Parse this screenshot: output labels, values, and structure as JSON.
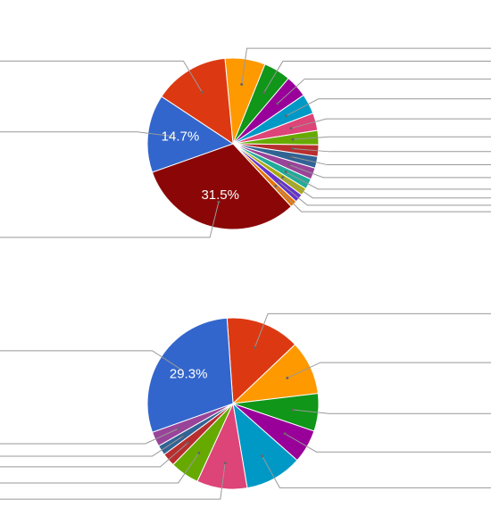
{
  "chart_data": [
    {
      "type": "pie",
      "values": [
        7.6,
        5.1,
        4.2,
        3.8,
        3.3,
        2.7,
        2.2,
        2.2,
        2.2,
        2.0,
        1.4,
        1.6,
        1.3,
        31.5,
        14.7,
        14.2
      ],
      "value_labels": [
        null,
        null,
        null,
        null,
        null,
        null,
        null,
        null,
        null,
        null,
        null,
        null,
        null,
        "31.5%",
        "14.7%",
        null
      ],
      "colors": [
        "#ff9900",
        "#109618",
        "#990099",
        "#0099c6",
        "#dd4477",
        "#66aa00",
        "#b82e2e",
        "#316395",
        "#994499",
        "#22aa99",
        "#aaaa11",
        "#6633cc",
        "#e67300",
        "#8b0707",
        "#3366cc",
        "#dc3912"
      ]
    },
    {
      "type": "pie",
      "values": [
        14.0,
        10.2,
        7.1,
        6.3,
        10.8,
        9.5,
        5.5,
        2.5,
        1.9,
        2.8,
        29.3
      ],
      "value_labels": [
        null,
        null,
        null,
        null,
        null,
        null,
        null,
        null,
        null,
        null,
        "29.3%"
      ],
      "colors": [
        "#dc3912",
        "#ff9900",
        "#109618",
        "#990099",
        "#0099c6",
        "#dd4477",
        "#66aa00",
        "#b82e2e",
        "#316395",
        "#994499",
        "#3366cc"
      ]
    }
  ]
}
